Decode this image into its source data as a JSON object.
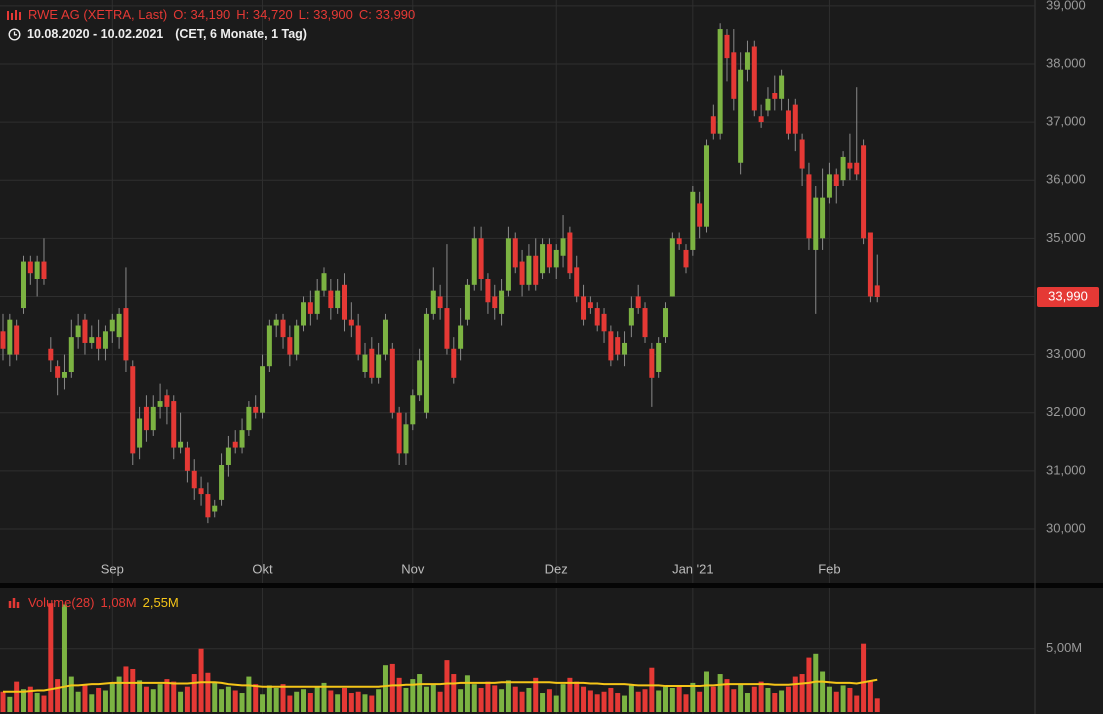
{
  "chart_data": [
    {
      "type": "candlestick",
      "title": "RWE AG (XETRA, Last)",
      "ohlc_labels": [
        "O: 34,190",
        "H: 34,720",
        "L: 33,900",
        "C: 33,990"
      ],
      "range": "10.08.2020 - 10.02.2021",
      "range_note": "(CET, 6 Monate, 1 Tag)",
      "last_value_label": "33,990",
      "up_color": "#7cb342",
      "down_color": "#e53935",
      "grid": true,
      "ylim": [
        29070,
        39100
      ],
      "yticks": [
        {
          "value": 30000,
          "label": "30,000"
        },
        {
          "value": 31000,
          "label": "31,000"
        },
        {
          "value": 32000,
          "label": "32,000"
        },
        {
          "value": 33000,
          "label": "33,000"
        },
        {
          "value": 34000,
          "label": "34,000"
        },
        {
          "value": 35000,
          "label": "35,000"
        },
        {
          "value": 36000,
          "label": "36,000"
        },
        {
          "value": 37000,
          "label": "37,000"
        },
        {
          "value": 38000,
          "label": "38,000"
        },
        {
          "value": 39000,
          "label": "39,000"
        }
      ],
      "categories": [
        null,
        null,
        null,
        null,
        null,
        null,
        null,
        null,
        null,
        null,
        null,
        null,
        null,
        null,
        null,
        null,
        "Sep",
        null,
        null,
        null,
        null,
        null,
        null,
        null,
        null,
        null,
        null,
        null,
        null,
        null,
        null,
        null,
        null,
        null,
        null,
        null,
        null,
        null,
        "Okt",
        null,
        null,
        null,
        null,
        null,
        null,
        null,
        null,
        null,
        null,
        null,
        null,
        null,
        null,
        null,
        null,
        null,
        null,
        null,
        null,
        null,
        "Nov",
        null,
        null,
        null,
        null,
        null,
        null,
        null,
        null,
        null,
        null,
        null,
        null,
        null,
        null,
        null,
        null,
        null,
        null,
        null,
        null,
        "Dez",
        null,
        null,
        null,
        null,
        null,
        null,
        null,
        null,
        null,
        null,
        null,
        null,
        null,
        null,
        null,
        null,
        null,
        null,
        null,
        "Jan '21",
        null,
        null,
        null,
        null,
        null,
        null,
        null,
        null,
        null,
        null,
        null,
        null,
        null,
        null,
        null,
        null,
        null,
        null,
        null,
        "Feb",
        null,
        null,
        null,
        null,
        null,
        null,
        null
      ],
      "open": [
        33400,
        33000,
        33500,
        33800,
        34600,
        34300,
        34600,
        33100,
        32800,
        32600,
        32700,
        33300,
        33600,
        33200,
        33300,
        33100,
        33400,
        33300,
        33800,
        32800,
        31400,
        32100,
        31700,
        32100,
        32300,
        32200,
        31400,
        31400,
        31000,
        30700,
        30600,
        30300,
        30500,
        31100,
        31500,
        31400,
        31700,
        32100,
        32000,
        32800,
        33500,
        33600,
        33300,
        33000,
        33500,
        33900,
        33700,
        34100,
        34100,
        33800,
        34200,
        33600,
        33500,
        32700,
        33100,
        32600,
        33000,
        33100,
        32000,
        31300,
        31800,
        32300,
        32000,
        33700,
        34000,
        33800,
        33100,
        33100,
        33600,
        34200,
        35000,
        34300,
        34000,
        33700,
        34100,
        35000,
        34600,
        34200,
        34700,
        34400,
        34900,
        34500,
        34700,
        35100,
        34500,
        34000,
        33900,
        33800,
        33700,
        33400,
        33300,
        33000,
        33500,
        34000,
        33800,
        33100,
        32700,
        33300,
        34000,
        35000,
        34800,
        34800,
        35600,
        35200,
        37100,
        36800,
        38500,
        38200,
        36300,
        37900,
        38300,
        37100,
        37200,
        37500,
        37400,
        37200,
        37300,
        36700,
        36100,
        34800,
        35000,
        35700,
        36100,
        36000,
        36300,
        36300,
        36600,
        35100,
        34190
      ],
      "high": [
        33700,
        33700,
        33600,
        34700,
        34700,
        34700,
        35000,
        33300,
        32900,
        33000,
        33600,
        33700,
        33700,
        33500,
        33600,
        33500,
        33700,
        33800,
        34500,
        32900,
        32100,
        32300,
        32300,
        32500,
        32400,
        32300,
        32000,
        31500,
        31200,
        30900,
        30800,
        30500,
        31300,
        31600,
        31700,
        31900,
        32200,
        32300,
        33000,
        33600,
        33700,
        33700,
        33500,
        33600,
        34000,
        34100,
        34300,
        34500,
        34300,
        34300,
        34400,
        33900,
        33700,
        33200,
        33300,
        33200,
        33700,
        33200,
        32100,
        32000,
        32400,
        33100,
        33800,
        34500,
        34200,
        34900,
        33300,
        33800,
        34300,
        35200,
        35200,
        34400,
        34200,
        34300,
        35200,
        35100,
        34800,
        34900,
        35000,
        35000,
        35000,
        34900,
        35400,
        35200,
        34700,
        34200,
        34000,
        33900,
        33800,
        33500,
        33400,
        33400,
        34000,
        34200,
        33900,
        33200,
        33300,
        33900,
        35100,
        35100,
        34900,
        35900,
        35800,
        36700,
        37300,
        38700,
        38600,
        38600,
        38200,
        38400,
        38400,
        37300,
        37600,
        37800,
        37900,
        37400,
        37400,
        36800,
        36300,
        35900,
        36200,
        36300,
        36200,
        36500,
        36800,
        37600,
        36700,
        35100,
        34720
      ],
      "low": [
        32900,
        32800,
        32900,
        33700,
        34200,
        34000,
        34200,
        32700,
        32300,
        32400,
        32600,
        33100,
        33000,
        33100,
        32900,
        32900,
        33200,
        33100,
        32700,
        31100,
        31200,
        31500,
        31600,
        31900,
        31800,
        31200,
        31300,
        30800,
        30500,
        30400,
        30100,
        30200,
        30400,
        30900,
        31300,
        31300,
        31600,
        31900,
        31900,
        32700,
        33300,
        33100,
        32800,
        32900,
        33400,
        33500,
        33600,
        34000,
        33600,
        33700,
        33400,
        33300,
        32900,
        32600,
        32500,
        32500,
        32900,
        31900,
        31100,
        31100,
        31700,
        32200,
        31900,
        33600,
        33600,
        33000,
        32500,
        32900,
        33500,
        34100,
        34100,
        33700,
        33600,
        33500,
        34000,
        34400,
        34000,
        34100,
        34100,
        34300,
        34400,
        34300,
        34500,
        34300,
        33900,
        33500,
        33700,
        33400,
        33200,
        32800,
        32900,
        32800,
        33300,
        33700,
        33200,
        32100,
        32600,
        33200,
        34000,
        34800,
        34400,
        34700,
        35000,
        35100,
        36700,
        36700,
        37700,
        37200,
        36100,
        37700,
        37100,
        36900,
        37100,
        37200,
        37200,
        36700,
        36500,
        35900,
        34800,
        33700,
        34800,
        35600,
        35600,
        35900,
        36000,
        36000,
        34900,
        33900,
        33900
      ],
      "close": [
        33100,
        33600,
        33000,
        34600,
        34400,
        34600,
        34300,
        32900,
        32600,
        32700,
        33300,
        33500,
        33200,
        33300,
        33100,
        33400,
        33600,
        33700,
        32900,
        31300,
        31900,
        31700,
        32100,
        32200,
        32100,
        31400,
        31500,
        31000,
        30700,
        30600,
        30200,
        30400,
        31100,
        31400,
        31400,
        31700,
        32100,
        32000,
        32800,
        33500,
        33600,
        33300,
        33000,
        33500,
        33900,
        33700,
        34100,
        34400,
        33800,
        34100,
        33600,
        33500,
        33000,
        33000,
        32600,
        33000,
        33600,
        32000,
        31300,
        31800,
        32300,
        32900,
        33700,
        34100,
        33800,
        33100,
        32600,
        33500,
        34200,
        35000,
        34300,
        33900,
        33800,
        34100,
        35000,
        34500,
        34200,
        34700,
        34200,
        34900,
        34500,
        34800,
        35000,
        34400,
        34000,
        33600,
        33800,
        33500,
        33400,
        32900,
        33000,
        33200,
        33800,
        33800,
        33300,
        32600,
        33200,
        33800,
        35000,
        34900,
        34500,
        35800,
        35200,
        36600,
        36800,
        38600,
        38100,
        37400,
        37900,
        38200,
        37200,
        37000,
        37400,
        37400,
        37800,
        36800,
        36800,
        36200,
        35000,
        35700,
        35700,
        36100,
        35900,
        36400,
        36200,
        36100,
        35000,
        34000,
        33990
      ]
    },
    {
      "type": "bar",
      "title": "Volume(28)",
      "value_label": "1,08M",
      "ylim": [
        0,
        9.8
      ],
      "yticks": [
        {
          "value": 5,
          "label": "5,00M"
        }
      ],
      "values": [
        1.6,
        1.2,
        2.4,
        1.8,
        2.0,
        1.5,
        1.3,
        8.6,
        2.6,
        8.5,
        2.8,
        1.6,
        2.2,
        1.4,
        1.9,
        1.7,
        2.3,
        2.8,
        3.6,
        3.4,
        2.5,
        2.0,
        1.8,
        2.2,
        2.6,
        2.4,
        1.6,
        2.0,
        3.0,
        5.0,
        3.1,
        2.4,
        1.8,
        2.0,
        1.7,
        1.5,
        2.8,
        2.2,
        1.4,
        2.1,
        1.9,
        2.2,
        1.3,
        1.6,
        1.8,
        1.5,
        2.0,
        2.3,
        1.7,
        1.4,
        1.9,
        1.5,
        1.6,
        1.4,
        1.3,
        1.8,
        3.7,
        3.8,
        2.7,
        1.9,
        2.6,
        3.0,
        2.0,
        2.2,
        1.6,
        4.1,
        3.0,
        1.8,
        2.9,
        2.2,
        1.9,
        2.4,
        2.1,
        1.8,
        2.5,
        2.0,
        1.6,
        1.9,
        2.7,
        1.5,
        1.8,
        1.3,
        2.2,
        2.7,
        2.4,
        2.0,
        1.7,
        1.4,
        1.6,
        1.9,
        1.5,
        1.3,
        2.1,
        1.6,
        1.8,
        3.5,
        1.7,
        2.0,
        1.9,
        2.1,
        1.4,
        2.3,
        1.6,
        3.2,
        2.0,
        3.0,
        2.6,
        1.8,
        2.2,
        1.5,
        2.0,
        2.4,
        1.9,
        1.5,
        1.7,
        2.0,
        2.8,
        3.0,
        4.3,
        4.6,
        3.2,
        2.0,
        1.6,
        2.1,
        1.9,
        1.3,
        5.4,
        2.4,
        1.08
      ],
      "ma": {
        "color": "#f5c518",
        "value_label": "2,55M",
        "values": [
          1.6,
          1.6,
          1.6,
          1.6,
          1.65,
          1.7,
          1.7,
          1.8,
          1.9,
          2.0,
          2.1,
          2.1,
          2.15,
          2.2,
          2.2,
          2.25,
          2.3,
          2.3,
          2.3,
          2.3,
          2.3,
          2.3,
          2.3,
          2.3,
          2.3,
          2.25,
          2.25,
          2.25,
          2.3,
          2.35,
          2.35,
          2.35,
          2.3,
          2.2,
          2.15,
          2.1,
          2.1,
          2.05,
          2.0,
          2.0,
          2.0,
          2.0,
          2.0,
          2.0,
          2.0,
          2.0,
          2.0,
          2.0,
          2.0,
          2.0,
          2.0,
          2.0,
          2.0,
          2.0,
          2.0,
          2.0,
          2.05,
          2.1,
          2.1,
          2.15,
          2.15,
          2.2,
          2.2,
          2.2,
          2.2,
          2.25,
          2.25,
          2.3,
          2.3,
          2.3,
          2.3,
          2.3,
          2.3,
          2.35,
          2.35,
          2.35,
          2.35,
          2.35,
          2.35,
          2.35,
          2.35,
          2.3,
          2.3,
          2.3,
          2.3,
          2.3,
          2.25,
          2.25,
          2.2,
          2.2,
          2.2,
          2.2,
          2.15,
          2.1,
          2.1,
          2.1,
          2.1,
          2.05,
          2.05,
          2.05,
          2.05,
          2.05,
          2.05,
          2.1,
          2.1,
          2.15,
          2.2,
          2.2,
          2.2,
          2.2,
          2.2,
          2.2,
          2.2,
          2.15,
          2.15,
          2.15,
          2.2,
          2.25,
          2.3,
          2.4,
          2.4,
          2.35,
          2.3,
          2.3,
          2.3,
          2.25,
          2.35,
          2.45,
          2.55
        ]
      }
    }
  ]
}
